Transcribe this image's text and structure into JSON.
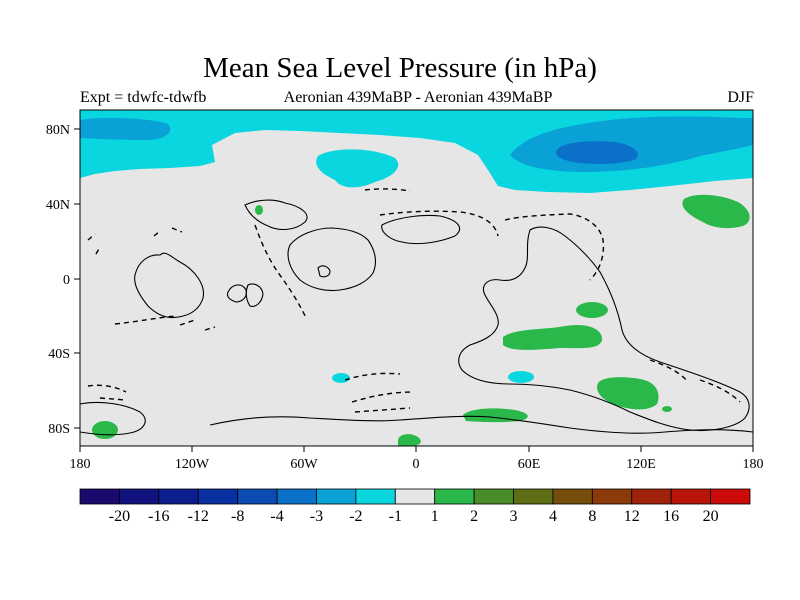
{
  "title": "Mean Sea Level Pressure (in hPa)",
  "subtitle_left": "Expt = tdwfc-tdwfb",
  "subtitle_center": "Aeronian 439MaBP - Aeronian 439MaBP",
  "subtitle_right": "DJF",
  "axes": {
    "x_ticks": [
      "180",
      "120W",
      "60W",
      "0",
      "60E",
      "120E",
      "180"
    ],
    "y_ticks": [
      "80N",
      "40N",
      "0",
      "40S",
      "80S"
    ]
  },
  "colorbar": {
    "labels": [
      "-20",
      "-16",
      "-12",
      "-8",
      "-4",
      "-3",
      "-2",
      "-1",
      "1",
      "2",
      "3",
      "4",
      "8",
      "12",
      "16",
      "20"
    ],
    "colors": [
      "#1a0a6e",
      "#10127e",
      "#0a1e8e",
      "#0a2fa0",
      "#0a4cb2",
      "#0a70c8",
      "#0aa2d6",
      "#0ad6e0",
      "#e6e6e6",
      "#2ab84a",
      "#4a8c28",
      "#5e6e14",
      "#744e0a",
      "#8c3a0a",
      "#a0220a",
      "#b8140a",
      "#cc0a0a"
    ]
  },
  "colors": {
    "background_field": "#e6e6e6",
    "light_cyan": "#0ad6e0",
    "medium_blue": "#0aa2d6",
    "dark_blue": "#0a70c8",
    "green": "#2ab84a"
  }
}
